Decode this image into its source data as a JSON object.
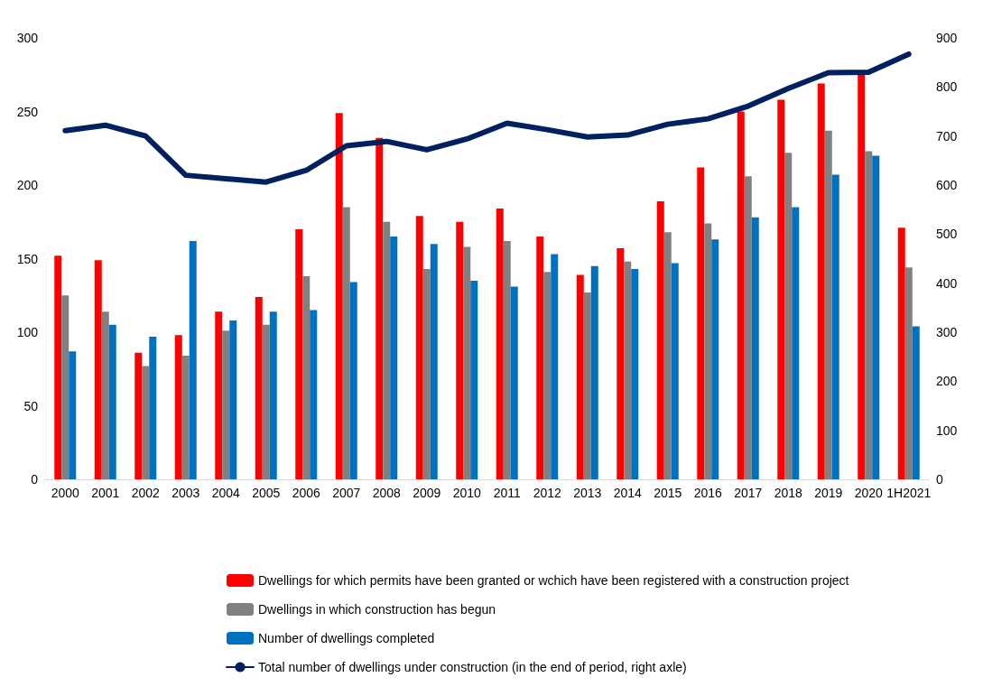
{
  "chart_data": {
    "type": "bar",
    "categories": [
      "2000",
      "2001",
      "2002",
      "2003",
      "2004",
      "2005",
      "2006",
      "2007",
      "2008",
      "2009",
      "2010",
      "2011",
      "2012",
      "2013",
      "2014",
      "2015",
      "2016",
      "2017",
      "2018",
      "2019",
      "2020",
      "1H2021"
    ],
    "series": [
      {
        "name": "Dwellings for which permits have been granted or wchich have been registered with a construction project",
        "color": "#ff0000",
        "values": [
          152,
          149,
          86,
          98,
          114,
          124,
          170,
          249,
          232,
          179,
          175,
          184,
          165,
          139,
          157,
          189,
          212,
          250,
          258,
          269,
          276,
          171
        ]
      },
      {
        "name": "Dwellings in which construction has begun",
        "color": "#808080",
        "values": [
          125,
          114,
          77,
          84,
          101,
          105,
          138,
          185,
          175,
          143,
          158,
          162,
          141,
          127,
          148,
          168,
          174,
          206,
          222,
          237,
          223,
          144
        ]
      },
      {
        "name": "Number of dwellings completed",
        "color": "#0070c0",
        "values": [
          87,
          105,
          97,
          162,
          108,
          114,
          115,
          134,
          165,
          160,
          135,
          131,
          153,
          145,
          143,
          147,
          163,
          178,
          185,
          207,
          220,
          104
        ]
      },
      {
        "name": "Total number of dwellings under construction (in the end of period, right axle)",
        "color": "#002060",
        "type": "line",
        "axis": "y2",
        "values": [
          711,
          722,
          700,
          620,
          613,
          606,
          630,
          680,
          689,
          672,
          694,
          726,
          713,
          698,
          702,
          724,
          735,
          761,
          797,
          829,
          830,
          867
        ]
      }
    ],
    "ylim": [
      0,
      300
    ],
    "yticks": [
      0,
      50,
      100,
      150,
      200,
      250,
      300
    ],
    "y2lim": [
      0,
      900
    ],
    "y2ticks": [
      0,
      100,
      200,
      300,
      400,
      500,
      600,
      700,
      800,
      900
    ],
    "grid": false,
    "legend": "bottom",
    "marker": "none",
    "line_style": "solid"
  }
}
